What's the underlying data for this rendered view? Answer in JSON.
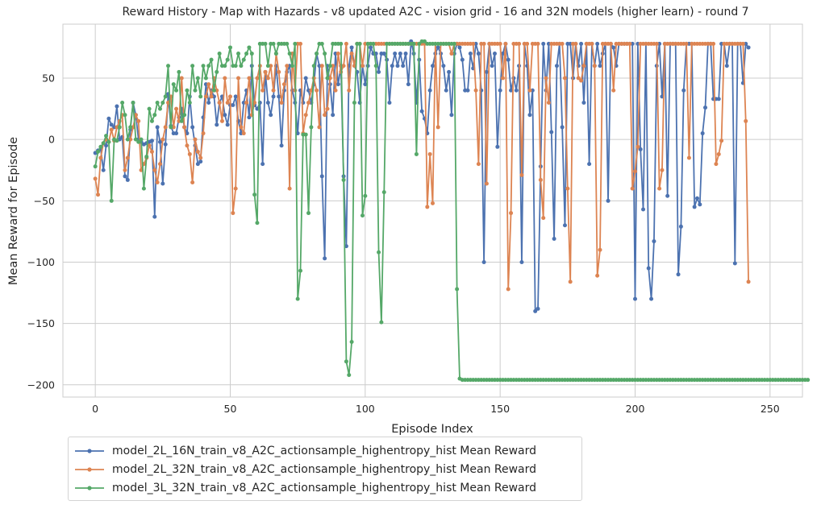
{
  "chart_data": {
    "type": "line",
    "title": "Reward History - Map with Hazards - v8 updated A2C - vision grid - 16 and 32N models (higher learn) - round 7",
    "xlabel": "Episode Index",
    "ylabel": "Mean Reward for Episode",
    "xlim": [
      -12,
      262
    ],
    "ylim": [
      -210,
      94
    ],
    "xticks": [
      0,
      50,
      100,
      150,
      200,
      250
    ],
    "yticks": [
      -200,
      -150,
      -100,
      -50,
      0,
      50
    ],
    "grid": true,
    "legend_position": "below-left",
    "series": [
      {
        "name": "model_2L_16N_train_v8_A2C_actionsample_highentropy_hist Mean Reward",
        "color": "#4c72b0",
        "values": [
          -11,
          -9,
          -8,
          -25,
          -5,
          17,
          12,
          10,
          27,
          0,
          2,
          -30,
          -33,
          8,
          30,
          20,
          0,
          -2,
          -4,
          -3,
          -2,
          -1,
          -63,
          10,
          -2,
          -36,
          -4,
          37,
          11,
          5,
          5,
          18,
          25,
          10,
          5,
          35,
          10,
          -5,
          -20,
          -18,
          18,
          45,
          30,
          40,
          35,
          12,
          30,
          35,
          20,
          12,
          28,
          28,
          35,
          15,
          5,
          30,
          40,
          18,
          60,
          28,
          25,
          30,
          -20,
          55,
          30,
          20,
          35,
          60,
          35,
          -5,
          40,
          55,
          60,
          40,
          30,
          5,
          40,
          30,
          50,
          40,
          30,
          45,
          70,
          60,
          -30,
          -97,
          60,
          45,
          20,
          70,
          45,
          60,
          -30,
          -87,
          60,
          75,
          60,
          55,
          30,
          60,
          45,
          60,
          75,
          70,
          70,
          55,
          70,
          70,
          65,
          30,
          60,
          70,
          60,
          70,
          60,
          70,
          45,
          80,
          70,
          30,
          65,
          23,
          17,
          5,
          40,
          60,
          70,
          75,
          70,
          60,
          40,
          55,
          20,
          70,
          78,
          75,
          65,
          40,
          40,
          70,
          58,
          78,
          70,
          40,
          -100,
          55,
          78,
          60,
          70,
          -6,
          40,
          70,
          78,
          65,
          40,
          50,
          40,
          60,
          -100,
          78,
          60,
          20,
          40,
          -140,
          -138,
          -22,
          78,
          40,
          78,
          6,
          -81,
          60,
          78,
          10,
          -70,
          78,
          78,
          50,
          78,
          60,
          78,
          30,
          78,
          -20,
          78,
          60,
          78,
          60,
          70,
          78,
          -50,
          78,
          75,
          60,
          78,
          78,
          78,
          78,
          78,
          78,
          -130,
          78,
          -8,
          -57,
          78,
          -105,
          -130,
          -83,
          60,
          78,
          35,
          78,
          -46,
          78,
          78,
          78,
          -110,
          -71,
          40,
          78,
          78,
          78,
          -55,
          -48,
          -53,
          5,
          26,
          78,
          78,
          33,
          33,
          33,
          78,
          78,
          60,
          78,
          78,
          -101,
          78,
          78,
          46,
          78,
          75
        ]
      },
      {
        "name": "model_2L_32N_train_v8_A2C_actionsample_highentropy_hist Mean Reward",
        "color": "#dd8452",
        "values": [
          -32,
          -45,
          -15,
          -3,
          0,
          -2,
          8,
          -1,
          10,
          15,
          20,
          -25,
          -15,
          0,
          10,
          20,
          15,
          -25,
          -20,
          -15,
          -5,
          -10,
          -25,
          -35,
          -20,
          0,
          10,
          30,
          35,
          10,
          25,
          15,
          50,
          10,
          -5,
          -12,
          -35,
          0,
          -10,
          -15,
          5,
          35,
          45,
          35,
          50,
          40,
          30,
          15,
          50,
          30,
          35,
          -60,
          -40,
          50,
          10,
          5,
          30,
          50,
          20,
          30,
          50,
          60,
          40,
          55,
          50,
          60,
          40,
          70,
          55,
          30,
          45,
          60,
          -40,
          70,
          40,
          78,
          78,
          5,
          20,
          30,
          40,
          50,
          40,
          10,
          60,
          20,
          25,
          50,
          60,
          40,
          70,
          55,
          60,
          78,
          40,
          70,
          60,
          78,
          78,
          60,
          78,
          78,
          78,
          78,
          78,
          78,
          78,
          78,
          78,
          78,
          78,
          78,
          78,
          78,
          78,
          78,
          78,
          78,
          78,
          78,
          78,
          78,
          78,
          -55,
          -12,
          -52,
          78,
          10,
          78,
          78,
          78,
          78,
          70,
          78,
          78,
          78,
          78,
          78,
          78,
          78,
          78,
          40,
          -20,
          78,
          78,
          -36,
          78,
          78,
          78,
          78,
          78,
          50,
          78,
          -122,
          -60,
          78,
          78,
          78,
          -29,
          78,
          78,
          40,
          78,
          78,
          78,
          -33,
          -64,
          50,
          30,
          78,
          78,
          78,
          78,
          78,
          50,
          -40,
          -116,
          78,
          78,
          50,
          48,
          60,
          78,
          78,
          78,
          60,
          -111,
          -90,
          78,
          78,
          78,
          78,
          40,
          78,
          78,
          78,
          78,
          78,
          78,
          -40,
          -26,
          -6,
          78,
          78,
          78,
          78,
          78,
          78,
          78,
          -40,
          -25,
          78,
          78,
          78,
          78,
          78,
          78,
          78,
          78,
          78,
          -15,
          78,
          78,
          78,
          78,
          78,
          78,
          78,
          78,
          78,
          -20,
          -12,
          -1,
          78,
          78,
          78,
          78,
          78,
          78,
          78,
          78,
          15,
          -116
        ]
      },
      {
        "name": "model_3L_32N_train_v8_A2C_actionsample_highentropy_hist Mean Reward",
        "color": "#55a868",
        "values": [
          -22,
          -10,
          -6,
          -3,
          3,
          -2,
          -50,
          0,
          -1,
          10,
          30,
          20,
          0,
          10,
          30,
          0,
          -2,
          0,
          -40,
          -14,
          25,
          15,
          20,
          30,
          25,
          30,
          35,
          60,
          10,
          45,
          40,
          55,
          15,
          20,
          40,
          30,
          60,
          40,
          50,
          35,
          60,
          50,
          60,
          65,
          40,
          55,
          70,
          60,
          60,
          65,
          75,
          60,
          60,
          70,
          60,
          65,
          70,
          75,
          70,
          -45,
          -68,
          78,
          78,
          78,
          60,
          78,
          78,
          70,
          78,
          78,
          78,
          78,
          70,
          60,
          78,
          -130,
          -107,
          4,
          4,
          -60,
          10,
          60,
          70,
          78,
          78,
          70,
          50,
          60,
          78,
          78,
          78,
          78,
          -33,
          -181,
          -192,
          -165,
          30,
          78,
          78,
          -62,
          -46,
          78,
          78,
          78,
          60,
          -92,
          -149,
          -43,
          78,
          78,
          78,
          78,
          78,
          78,
          78,
          78,
          78,
          78,
          78,
          -12,
          78,
          80,
          80,
          78,
          78,
          78,
          78,
          78,
          78,
          78,
          78,
          78,
          78,
          78,
          -122,
          -195,
          -196,
          -196,
          -196,
          -196,
          -196,
          -196,
          -196,
          -196,
          -196,
          -196,
          -196,
          -196,
          -196,
          -196,
          -196,
          -196,
          -196,
          -196,
          -196,
          -196,
          -196,
          -196,
          -196,
          -196,
          -196,
          -196,
          -196,
          -196,
          -196,
          -196,
          -196,
          -196,
          -196,
          -196,
          -196,
          -196,
          -196,
          -196,
          -196,
          -196,
          -196,
          -196,
          -196,
          -196,
          -196,
          -196,
          -196,
          -196,
          -196,
          -196,
          -196,
          -196,
          -196,
          -196,
          -196,
          -196,
          -196,
          -196,
          -196,
          -196,
          -196,
          -196,
          -196,
          -196,
          -196,
          -196,
          -196,
          -196,
          -196,
          -196,
          -196,
          -196,
          -196,
          -196,
          -196,
          -196,
          -196,
          -196,
          -196,
          -196,
          -196,
          -196,
          -196,
          -196,
          -196,
          -196,
          -196,
          -196,
          -196,
          -196,
          -196,
          -196,
          -196,
          -196,
          -196,
          -196,
          -196,
          -196,
          -196,
          -196,
          -196,
          -196,
          -196,
          -196,
          -196,
          -196,
          -196,
          -196,
          -196,
          -196,
          -196,
          -196,
          -196,
          -196,
          -196,
          -196,
          -196,
          -196,
          -196,
          -196,
          -196,
          -196,
          -196,
          -196,
          -196,
          -196,
          -196,
          -196,
          -196
        ]
      }
    ]
  }
}
